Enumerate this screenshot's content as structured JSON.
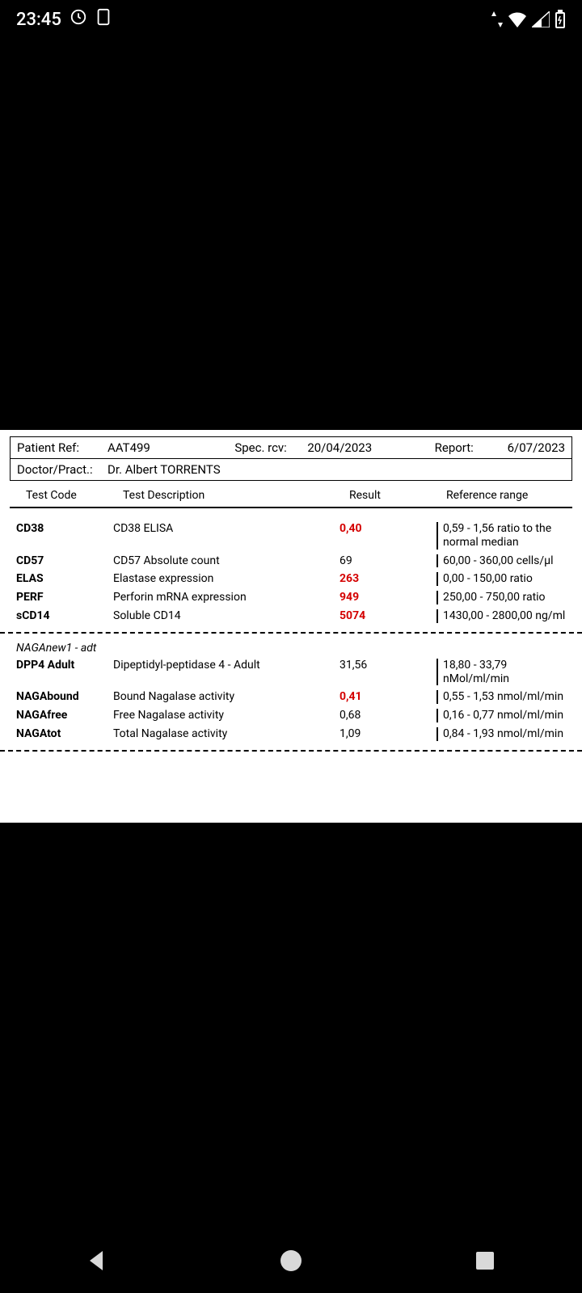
{
  "status": {
    "time": "23:45"
  },
  "report": {
    "header": {
      "patient_ref_label": "Patient Ref:",
      "patient_ref": "AAT499",
      "spec_rcv_label": "Spec. rcv:",
      "spec_rcv": "20/04/2023",
      "report_label": "Report:",
      "report_date": "6/07/2023",
      "doctor_label": "Doctor/Pract.:",
      "doctor": "Dr. Albert TORRENTS"
    },
    "columns": {
      "code": "Test Code",
      "desc": "Test Description",
      "result": "Result",
      "ref": "Reference range"
    },
    "section1": [
      {
        "code": "CD38",
        "desc": "CD38 ELISA",
        "result": "0,40",
        "abnormal": true,
        "ref": "0,59 - 1,56 ratio to the normal median"
      },
      {
        "code": "CD57",
        "desc": "CD57 Absolute count",
        "result": "69",
        "abnormal": false,
        "ref": "60,00 - 360,00 cells/µl"
      },
      {
        "code": "ELAS",
        "desc": "Elastase expression",
        "result": "263",
        "abnormal": true,
        "ref": "0,00 - 150,00 ratio"
      },
      {
        "code": "PERF",
        "desc": "Perforin mRNA expression",
        "result": "949",
        "abnormal": true,
        "ref": "250,00 - 750,00 ratio"
      },
      {
        "code": "sCD14",
        "desc": "Soluble CD14",
        "result": "5074",
        "abnormal": true,
        "ref": "1430,00 - 2800,00 ng/ml"
      }
    ],
    "section2_title": "NAGAnew1 - adt",
    "section2": [
      {
        "code": "DPP4 Adult",
        "desc": "Dipeptidyl-peptidase 4 - Adult",
        "result": "31,56",
        "abnormal": false,
        "ref": "18,80 - 33,79 nMol/ml/min"
      },
      {
        "code": "NAGAbound",
        "desc": "Bound Nagalase activity",
        "result": "0,41",
        "abnormal": true,
        "ref": "0,55 - 1,53 nmol/ml/min"
      },
      {
        "code": "NAGAfree",
        "desc": "Free Nagalase activity",
        "result": "0,68",
        "abnormal": false,
        "ref": "0,16 - 0,77 nmol/ml/min"
      },
      {
        "code": "NAGAtot",
        "desc": "Total Nagalase activity",
        "result": "1,09",
        "abnormal": false,
        "ref": "0,84 - 1,93 nmol/ml/min"
      }
    ]
  },
  "colors": {
    "abnormal": "#d40000",
    "doc_bg": "#ffffff",
    "page_bg": "#000000",
    "nav_icon": "#d9d9d9"
  }
}
